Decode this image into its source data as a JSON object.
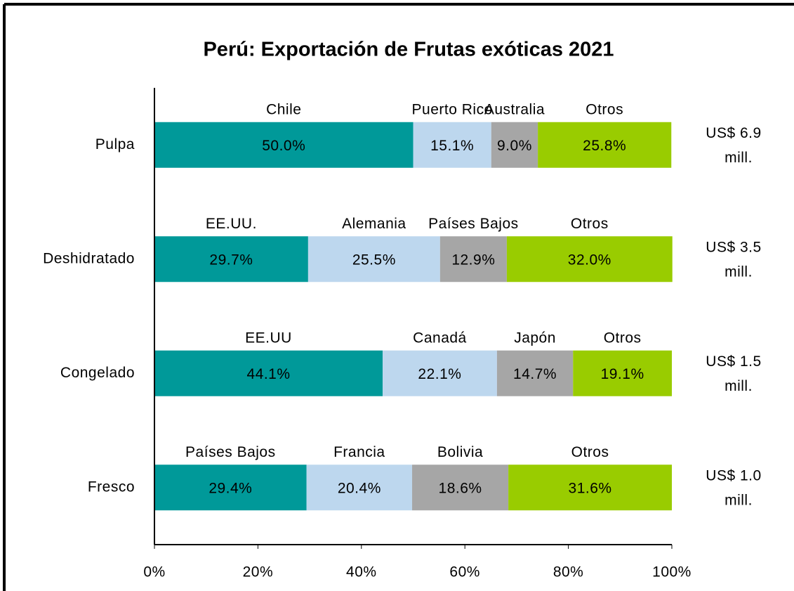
{
  "chart_data": {
    "type": "stacked_bar_horizontal",
    "title": "Perú: Exportación de Frutas exóticas 2021",
    "categories": [
      "Pulpa",
      "Deshidratado",
      "Congelado",
      "Fresco"
    ],
    "series": [
      {
        "color": "#009999",
        "segment_labels": [
          "Chile",
          "EE.UU.",
          "EE.UU",
          "Países Bajos"
        ],
        "values": [
          50.0,
          29.7,
          44.1,
          29.4
        ],
        "value_labels": [
          "50.0%",
          "29.7%",
          "44.1%",
          "29.4%"
        ]
      },
      {
        "color": "#bdd7ee",
        "segment_labels": [
          "Puerto Rico",
          "Alemania",
          "Canadá",
          "Francia"
        ],
        "values": [
          15.1,
          25.5,
          22.1,
          20.4
        ],
        "value_labels": [
          "15.1%",
          "25.5%",
          "22.1%",
          "20.4%"
        ]
      },
      {
        "color": "#a6a6a6",
        "segment_labels": [
          "Australia",
          "Países Bajos",
          "Japón",
          "Bolivia"
        ],
        "values": [
          9.0,
          12.9,
          14.7,
          18.6
        ],
        "value_labels": [
          "9.0%",
          "12.9%",
          "14.7%",
          "18.6%"
        ]
      },
      {
        "color": "#99cc00",
        "segment_labels": [
          "Otros",
          "Otros",
          "Otros",
          "Otros"
        ],
        "values": [
          25.8,
          32.0,
          19.1,
          31.6
        ],
        "value_labels": [
          "25.8%",
          "32.0%",
          "19.1%",
          "31.6%"
        ]
      }
    ],
    "totals": [
      [
        "US$ 6.9",
        "mill."
      ],
      [
        "US$ 3.5",
        "mill."
      ],
      [
        "US$ 1.5",
        "mill."
      ],
      [
        "US$ 1.0",
        "mill."
      ]
    ],
    "xlim": [
      0,
      100
    ],
    "xticks": [
      {
        "value": 0,
        "label": "0%"
      },
      {
        "value": 20,
        "label": "20%"
      },
      {
        "value": 40,
        "label": "40%"
      },
      {
        "value": 60,
        "label": "60%"
      },
      {
        "value": 80,
        "label": "80%"
      },
      {
        "value": 100,
        "label": "100%"
      }
    ]
  }
}
